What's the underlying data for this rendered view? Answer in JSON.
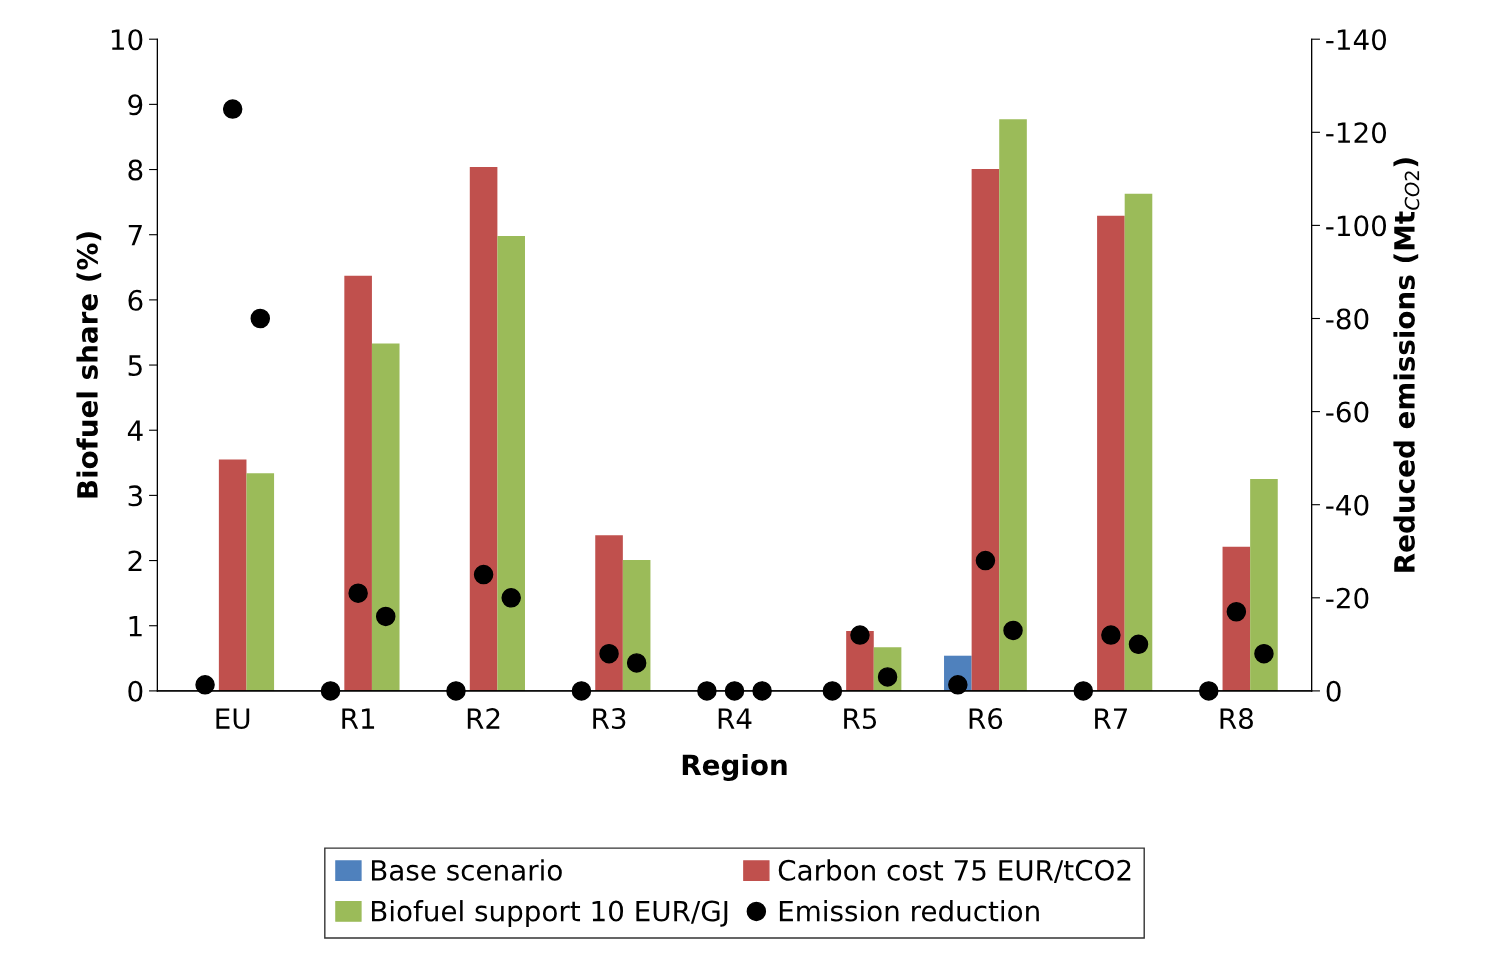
{
  "chart_data": {
    "type": "bar",
    "xlabel": "Region",
    "ylabel": "Biofuel share (%)",
    "y2label": "Reduced emissions (Mt$_{CO2}$)",
    "categories": [
      "EU",
      "R1",
      "R2",
      "R3",
      "R4",
      "R5",
      "R6",
      "R7",
      "R8"
    ],
    "series": [
      {
        "name": "Base scenario",
        "color": "#4f81bd",
        "values": [
          0,
          0,
          0,
          0,
          0,
          0,
          0.54,
          0,
          0
        ]
      },
      {
        "name": "Carbon cost 75 EUR/tCO2",
        "color": "#c0504d",
        "values": [
          3.55,
          6.37,
          8.04,
          2.39,
          0,
          0.92,
          8.01,
          7.29,
          2.21
        ]
      },
      {
        "name": "Biofuel support 10 EUR/GJ",
        "color": "#9bbb59",
        "values": [
          3.34,
          5.33,
          6.98,
          2.01,
          0,
          0.67,
          8.77,
          7.63,
          3.25
        ]
      },
      {
        "name": "Emission reduction",
        "type": "scatter",
        "axis": "y2",
        "color": "#000000",
        "values": [
          -1.3,
          0,
          0,
          0,
          0,
          0,
          -1.3,
          0,
          0
        ]
      },
      {
        "type": "scatter",
        "axis": "y2",
        "color": "#000000",
        "values": [
          -125,
          -21,
          -25,
          -8,
          0,
          -12,
          -28,
          -12,
          -17
        ]
      },
      {
        "type": "scatter",
        "axis": "y2",
        "color": "#000000",
        "values": [
          -80,
          -16,
          -20,
          -6,
          0,
          -3,
          -13,
          -10,
          -8
        ]
      }
    ],
    "ylim": [
      0,
      10
    ],
    "yticks": [
      0,
      1,
      2,
      3,
      4,
      5,
      6,
      7,
      8,
      9,
      10
    ],
    "y2lim": [
      0,
      -140
    ],
    "y2ticks": [
      0,
      -20,
      -40,
      -60,
      -80,
      -100,
      -120,
      -140
    ],
    "marker": "circle",
    "grid": false,
    "legend": "bottom"
  }
}
